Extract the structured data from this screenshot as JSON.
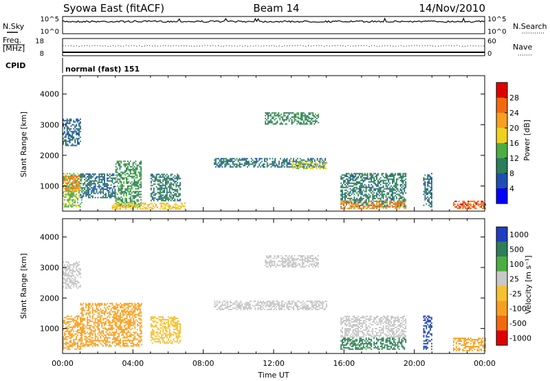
{
  "header": {
    "station": "Syowa East (fitACF)",
    "beam": "Beam 14",
    "date": "14/Nov/2010"
  },
  "sky_panel": {
    "left_label": "N.Sky",
    "right_label": "N.Search",
    "left_ticks": [
      "10^5",
      "10^0"
    ],
    "right_ticks": [
      "10^5",
      "10^0"
    ]
  },
  "freq_panel": {
    "left_label_1": "Freq.",
    "left_label_2": "[MHz]",
    "right_label": "Nave",
    "left_ticks": [
      "18",
      "8"
    ],
    "right_ticks": [
      "60",
      "0"
    ]
  },
  "cpid": {
    "label": "CPID",
    "value": "normal (fast) 151"
  },
  "chart_data": [
    {
      "type": "heatmap",
      "name": "Power",
      "ylabel": "Slant Range [km]",
      "xlabel": "",
      "ylim": [
        180,
        4600
      ],
      "yticks": [
        "1000",
        "2000",
        "3000",
        "4000"
      ],
      "ytick_values": [
        1000,
        2000,
        3000,
        4000
      ],
      "colorbar_label": "Power [dB]",
      "colorbar_ticks": [
        "4",
        "8",
        "12",
        "16",
        "20",
        "24",
        "28"
      ],
      "colorbar_range": [
        0,
        30
      ],
      "colors": [
        "#0000ff",
        "#1f4fb0",
        "#2e7d5b",
        "#4cae42",
        "#f0d020",
        "#f7a020",
        "#f26a10",
        "#e00000"
      ],
      "regions": [
        {
          "t": [
            0.0,
            1.1
          ],
          "r": [
            300,
            1400
          ],
          "v": 14
        },
        {
          "t": [
            0.0,
            0.9
          ],
          "r": [
            800,
            1300
          ],
          "v": 22
        },
        {
          "t": [
            0.0,
            1.0
          ],
          "r": [
            2300,
            3200
          ],
          "v": 7
        },
        {
          "t": [
            1.0,
            3.0
          ],
          "r": [
            600,
            1400
          ],
          "v": 8
        },
        {
          "t": [
            3.0,
            4.5
          ],
          "r": [
            300,
            1800
          ],
          "v": 11
        },
        {
          "t": [
            5.0,
            6.7
          ],
          "r": [
            500,
            1400
          ],
          "v": 9
        },
        {
          "t": [
            2.8,
            7.0
          ],
          "r": [
            230,
            420
          ],
          "v": 18
        },
        {
          "t": [
            8.6,
            15.0
          ],
          "r": [
            1600,
            1900
          ],
          "v": 8
        },
        {
          "t": [
            11.5,
            14.5
          ],
          "r": [
            3000,
            3400
          ],
          "v": 10
        },
        {
          "t": [
            13.0,
            15.0
          ],
          "r": [
            1550,
            1800
          ],
          "v": 16
        },
        {
          "t": [
            15.8,
            19.5
          ],
          "r": [
            300,
            1400
          ],
          "v": 9
        },
        {
          "t": [
            15.8,
            19.5
          ],
          "r": [
            250,
            500
          ],
          "v": 22
        },
        {
          "t": [
            20.5,
            21.0
          ],
          "r": [
            300,
            1400
          ],
          "v": 8
        },
        {
          "t": [
            22.2,
            24.0
          ],
          "r": [
            250,
            500
          ],
          "v": 25
        }
      ]
    },
    {
      "type": "heatmap",
      "name": "Velocity",
      "ylabel": "Slant Range [km]",
      "xlabel": "Time UT",
      "xlim": [
        0,
        24
      ],
      "xticks": [
        "00:00",
        "04:00",
        "08:00",
        "12:00",
        "16:00",
        "20:00",
        "00:00"
      ],
      "ylim": [
        180,
        4600
      ],
      "yticks": [
        "1000",
        "2000",
        "3000",
        "4000"
      ],
      "ytick_values": [
        1000,
        2000,
        3000,
        4000
      ],
      "colorbar_label": "Velocity [m s⁻¹]",
      "colorbar_ticks": [
        "1000",
        "500",
        "100",
        "25",
        "-25",
        "-100",
        "-500",
        "-1000"
      ],
      "colors": [
        "#1f3fc0",
        "#2e7d5b",
        "#4cae42",
        "#c8c8c8",
        "#f7c030",
        "#f7a020",
        "#f26a10",
        "#e00000"
      ],
      "regions": [
        {
          "t": [
            0.0,
            1.1
          ],
          "r": [
            300,
            1400
          ],
          "v": -300
        },
        {
          "t": [
            1.0,
            4.5
          ],
          "r": [
            400,
            1800
          ],
          "v": -150
        },
        {
          "t": [
            5.0,
            6.7
          ],
          "r": [
            500,
            1400
          ],
          "v": -60
        },
        {
          "t": [
            0.0,
            1.0
          ],
          "r": [
            2300,
            3200
          ],
          "v": 10
        },
        {
          "t": [
            8.6,
            15.0
          ],
          "r": [
            1600,
            1900
          ],
          "v": 5
        },
        {
          "t": [
            11.5,
            14.5
          ],
          "r": [
            3000,
            3400
          ],
          "v": 5
        },
        {
          "t": [
            15.8,
            19.5
          ],
          "r": [
            300,
            700
          ],
          "v": 120
        },
        {
          "t": [
            15.8,
            19.5
          ],
          "r": [
            700,
            1400
          ],
          "v": 8
        },
        {
          "t": [
            20.5,
            21.0
          ],
          "r": [
            300,
            1400
          ],
          "v": 600
        },
        {
          "t": [
            22.2,
            24.0
          ],
          "r": [
            250,
            700
          ],
          "v": -200
        }
      ]
    }
  ]
}
